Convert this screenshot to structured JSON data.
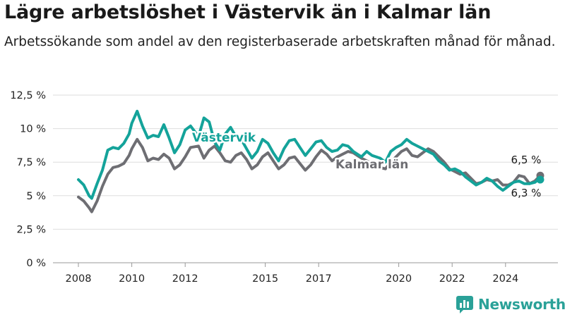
{
  "title": "Lägre arbetslöshet i Västervik än i Kalmar län",
  "subtitle": "Arbetssökande som andel av den registerbaserade arbetskraften månad för månad.",
  "brand": {
    "name": "Newsworthy"
  },
  "colors": {
    "vastervik": "#14a39a",
    "kalmar": "#6e6e73",
    "text": "#1a1a1a",
    "grid": "#dddddd"
  },
  "chart_data": {
    "type": "line",
    "title": "Lägre arbetslöshet i Västervik än i Kalmar län",
    "ylim": [
      0,
      12.5
    ],
    "xlim": [
      2008,
      2025.6
    ],
    "y_ticks": [
      0,
      2.5,
      5,
      7.5,
      10,
      12.5
    ],
    "y_tick_labels": [
      "0 %",
      "2,5 %",
      "5 %",
      "7,5 %",
      "10 %",
      "12,5 %"
    ],
    "x_ticks": [
      2008,
      2010,
      2012,
      2015,
      2017,
      2020,
      2022,
      2024
    ],
    "x_tick_labels": [
      "2008",
      "2010",
      "2012",
      "2015",
      "2017",
      "2020",
      "2022",
      "2024"
    ],
    "grid": true,
    "annotations": {
      "vastervik_end": "6,3 %",
      "kalmar_end": "6,5 %"
    },
    "series": [
      {
        "name": "Kalmar län",
        "x": [
          2008.0,
          2008.2,
          2008.4,
          2008.5,
          2008.7,
          2008.9,
          2009.1,
          2009.3,
          2009.5,
          2009.7,
          2009.9,
          2010.0,
          2010.2,
          2010.4,
          2010.6,
          2010.8,
          2011.0,
          2011.2,
          2011.4,
          2011.6,
          2011.8,
          2012.0,
          2012.2,
          2012.5,
          2012.7,
          2012.9,
          2013.1,
          2013.3,
          2013.5,
          2013.7,
          2013.9,
          2014.1,
          2014.3,
          2014.5,
          2014.7,
          2014.9,
          2015.1,
          2015.3,
          2015.5,
          2015.7,
          2015.9,
          2016.1,
          2016.3,
          2016.5,
          2016.7,
          2016.9,
          2017.1,
          2017.3,
          2017.5,
          2017.7,
          2017.9,
          2018.1,
          2018.3,
          2018.6,
          2018.8,
          2019.0,
          2019.3,
          2019.5,
          2019.7,
          2019.9,
          2020.1,
          2020.3,
          2020.5,
          2020.7,
          2020.9,
          2021.1,
          2021.3,
          2021.5,
          2021.7,
          2021.9,
          2022.1,
          2022.3,
          2022.5,
          2022.7,
          2022.9,
          2023.1,
          2023.3,
          2023.5,
          2023.7,
          2023.9,
          2024.1,
          2024.3,
          2024.5,
          2024.7,
          2024.9,
          2025.1,
          2025.3
        ],
        "y": [
          4.9,
          4.6,
          4.1,
          3.8,
          4.6,
          5.7,
          6.6,
          7.1,
          7.2,
          7.4,
          8.0,
          8.5,
          9.2,
          8.6,
          7.6,
          7.8,
          7.7,
          8.1,
          7.8,
          7.0,
          7.3,
          7.9,
          8.6,
          8.7,
          7.8,
          8.4,
          8.7,
          8.2,
          7.6,
          7.5,
          8.0,
          8.2,
          7.7,
          7.0,
          7.3,
          7.9,
          8.2,
          7.6,
          7.0,
          7.3,
          7.8,
          7.9,
          7.4,
          6.9,
          7.3,
          7.9,
          8.4,
          8.1,
          7.6,
          7.9,
          8.1,
          8.3,
          8.2,
          7.8,
          7.6,
          7.4,
          7.1,
          7.0,
          7.5,
          7.9,
          8.3,
          8.5,
          8.0,
          7.9,
          8.2,
          8.5,
          8.3,
          7.9,
          7.5,
          7.0,
          6.8,
          6.6,
          6.7,
          6.3,
          5.9,
          6.0,
          6.2,
          6.1,
          6.2,
          5.8,
          5.8,
          6.0,
          6.5,
          6.4,
          5.9,
          6.1,
          6.5
        ]
      },
      {
        "name": "Västervik",
        "x": [
          2008.0,
          2008.2,
          2008.4,
          2008.5,
          2008.7,
          2008.9,
          2009.1,
          2009.3,
          2009.5,
          2009.7,
          2009.9,
          2010.0,
          2010.2,
          2010.4,
          2010.6,
          2010.8,
          2011.0,
          2011.2,
          2011.4,
          2011.6,
          2011.8,
          2012.0,
          2012.2,
          2012.5,
          2012.7,
          2012.9,
          2013.1,
          2013.3,
          2013.5,
          2013.7,
          2013.9,
          2014.1,
          2014.3,
          2014.5,
          2014.7,
          2014.9,
          2015.1,
          2015.3,
          2015.5,
          2015.7,
          2015.9,
          2016.1,
          2016.3,
          2016.5,
          2016.7,
          2016.9,
          2017.1,
          2017.3,
          2017.5,
          2017.7,
          2017.9,
          2018.1,
          2018.3,
          2018.6,
          2018.8,
          2019.0,
          2019.3,
          2019.5,
          2019.7,
          2019.9,
          2020.1,
          2020.3,
          2020.5,
          2020.7,
          2020.9,
          2021.1,
          2021.3,
          2021.5,
          2021.7,
          2021.9,
          2022.1,
          2022.3,
          2022.5,
          2022.7,
          2022.9,
          2023.1,
          2023.3,
          2023.5,
          2023.7,
          2023.9,
          2024.1,
          2024.3,
          2024.5,
          2024.7,
          2024.9,
          2025.1,
          2025.3
        ],
        "y": [
          6.2,
          5.8,
          5.0,
          4.8,
          5.9,
          6.9,
          8.4,
          8.6,
          8.5,
          8.9,
          9.6,
          10.4,
          11.3,
          10.2,
          9.3,
          9.5,
          9.4,
          10.3,
          9.3,
          8.2,
          8.8,
          9.9,
          10.2,
          9.4,
          10.8,
          10.5,
          9.0,
          8.4,
          9.6,
          10.1,
          9.4,
          9.2,
          8.5,
          7.8,
          8.3,
          9.2,
          8.9,
          8.2,
          7.6,
          8.5,
          9.1,
          9.2,
          8.6,
          8.0,
          8.5,
          9.0,
          9.1,
          8.6,
          8.3,
          8.4,
          8.8,
          8.7,
          8.3,
          7.9,
          8.3,
          8.0,
          7.8,
          7.5,
          8.3,
          8.6,
          8.8,
          9.2,
          8.9,
          8.7,
          8.5,
          8.3,
          8.1,
          7.6,
          7.3,
          6.9,
          7.0,
          6.8,
          6.4,
          6.1,
          5.8,
          6.0,
          6.3,
          6.1,
          5.7,
          5.4,
          5.7,
          6.0,
          6.1,
          5.9,
          5.9,
          6.0,
          6.3
        ]
      }
    ],
    "series_labels": [
      "Västervik",
      "Kalmar län"
    ]
  }
}
